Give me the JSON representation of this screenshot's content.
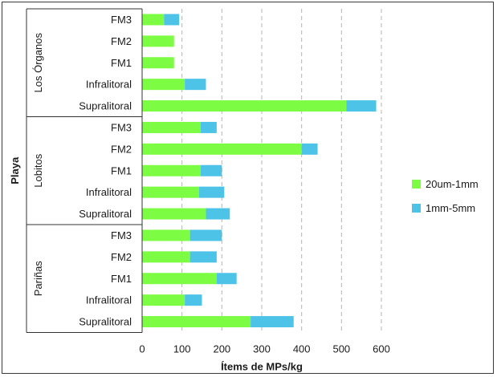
{
  "chart_data": {
    "type": "bar",
    "orientation": "horizontal",
    "stacked": true,
    "xlabel": "Ítems de MPs/kg",
    "ylabel": "Playa",
    "xlim": [
      0,
      600
    ],
    "xticks": [
      0,
      100,
      200,
      300,
      400,
      500,
      600
    ],
    "grid": "vertical dashed",
    "legend_position": "right",
    "groups": [
      {
        "name": "Los Órganos",
        "categories": [
          "FM3",
          "FM2",
          "FM1",
          "Infralitoral",
          "Supralitoral"
        ]
      },
      {
        "name": "Lobitos",
        "categories": [
          "FM3",
          "FM2",
          "FM1",
          "Infralitoral",
          "Supralitoral"
        ]
      },
      {
        "name": "Pariñas",
        "categories": [
          "FM3",
          "FM2",
          "FM1",
          "Infralitoral",
          "Supralitoral"
        ]
      }
    ],
    "series": [
      {
        "name": "20um-1mm",
        "color": "#7CFC42",
        "values": [
          55,
          80,
          80,
          107,
          512,
          147,
          400,
          147,
          143,
          160,
          120,
          120,
          187,
          107,
          272
        ]
      },
      {
        "name": "1mm-5mm",
        "color": "#4DC3E8",
        "values": [
          38,
          0,
          0,
          53,
          75,
          40,
          40,
          53,
          63,
          60,
          80,
          67,
          50,
          43,
          108
        ]
      }
    ]
  }
}
